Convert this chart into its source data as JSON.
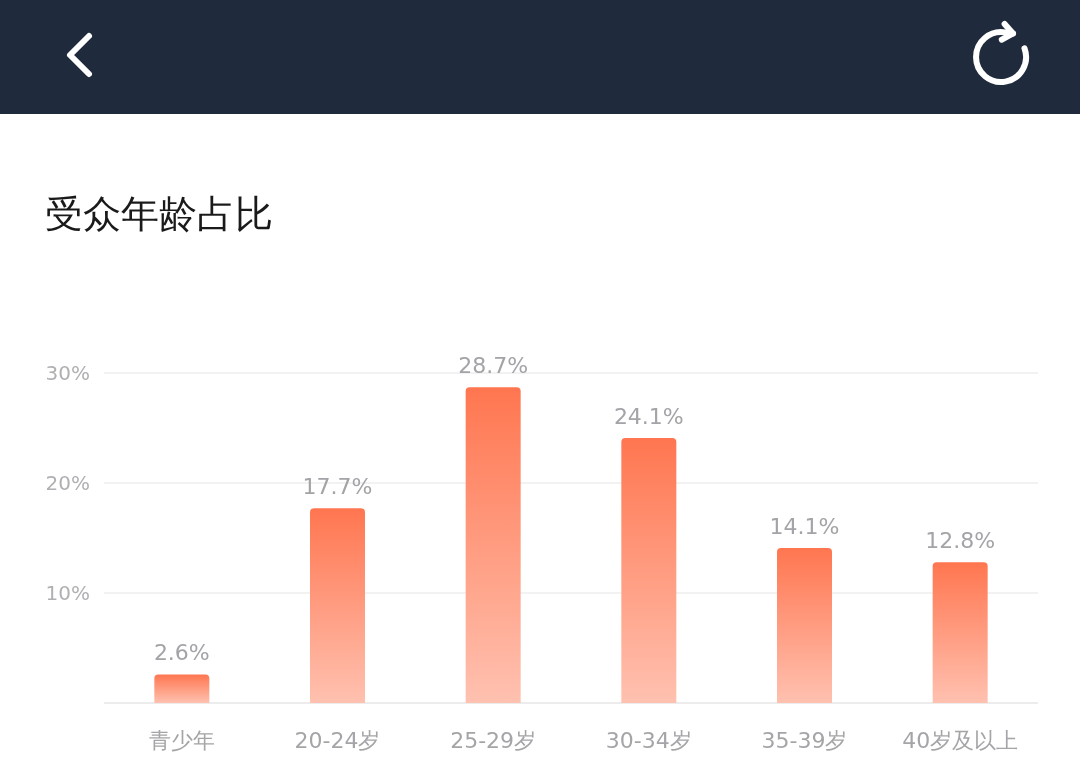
{
  "chart_data": {
    "type": "bar",
    "title": "受众年龄占比",
    "categories": [
      "青少年",
      "20-24岁",
      "25-29岁",
      "30-34岁",
      "35-39岁",
      "40岁及以上"
    ],
    "values": [
      2.6,
      17.7,
      28.7,
      24.1,
      14.1,
      12.8
    ],
    "value_labels": [
      "2.6%",
      "17.7%",
      "28.7%",
      "24.1%",
      "14.1%",
      "12.8%"
    ],
    "color": "#ff7650",
    "ylim": [
      0,
      30
    ],
    "yticks": [
      {
        "value": 0,
        "label": null
      },
      {
        "value": 10,
        "label": "10%"
      },
      {
        "value": 20,
        "label": "20%"
      },
      {
        "value": 30,
        "label": "30%"
      }
    ],
    "grid": "y"
  }
}
